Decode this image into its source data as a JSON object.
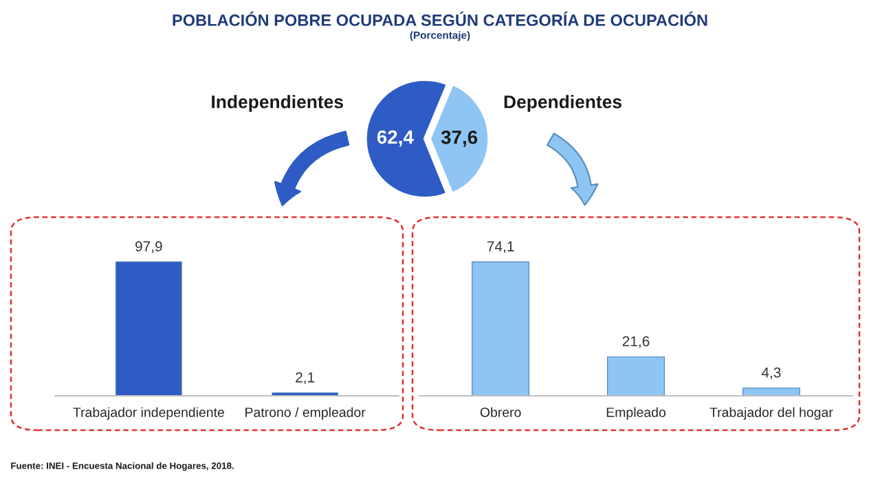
{
  "chart_data": [
    {
      "type": "pie",
      "title": "POBLACIÓN POBRE OCUPADA SEGÚN CATEGORÍA DE OCUPACIÓN",
      "subtitle": "(Porcentaje)",
      "categories": [
        "Independientes",
        "Dependientes"
      ],
      "values": [
        62.4,
        37.6
      ],
      "value_labels": [
        "62,4",
        "37,6"
      ],
      "colors": [
        "#2f5bc4",
        "#8ec5f2"
      ],
      "annotations": [
        "Fuente: INEI - Encuesta Nacional de Hogares, 2018."
      ]
    },
    {
      "type": "bar",
      "categories": [
        "Trabajador independiente",
        "Patrono / empleador"
      ],
      "values": [
        97.9,
        2.1
      ],
      "value_labels": [
        "97,9",
        "2,1"
      ],
      "color": "#2f5bc4"
    },
    {
      "type": "bar",
      "categories": [
        "Obrero",
        "Empleado",
        "Trabajador del hogar"
      ],
      "values": [
        74.1,
        21.6,
        4.3
      ],
      "value_labels": [
        "74,1",
        "21,6",
        "4,3"
      ],
      "color": "#8ec5f2"
    }
  ]
}
